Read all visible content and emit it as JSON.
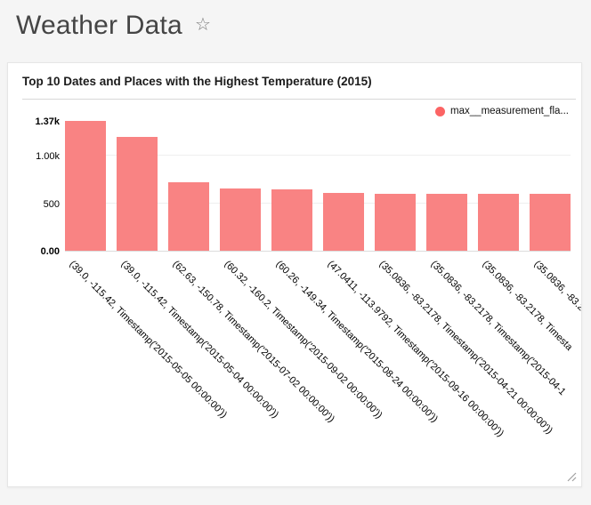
{
  "page": {
    "title": "Weather Data",
    "background": "#f5f5f5"
  },
  "card": {
    "title": "Top 10 Dates and Places with the Highest Temperature (2015)",
    "legend": {
      "label": "max__measurement_fla...",
      "color": "#fc6464"
    }
  },
  "chart_data": {
    "type": "bar",
    "title": "Top 10 Dates and Places with the Highest Temperature (2015)",
    "categories": [
      "(39.0, -115.42, Timestamp('2015-05-05 00:00:00'))",
      "(39.0, -115.42, Timestamp('2015-05-04 00:00:00'))",
      "(62.63, -150.78, Timestamp('2015-07-02 00:00:00'))",
      "(60.32, -160.2, Timestamp('2015-09-02 00:00:00'))",
      "(60.26, -149.34, Timestamp('2015-08-24 00:00:00'))",
      "(47.0411, -113.9792, Timestamp('2015-09-16 00:00:00'))",
      "(35.0836, -83.2178, Timestamp('2015-04-21 00:00:00'))",
      "(35.0836, -83.2178, Timestamp('2015-04-1",
      "(35.0836, -83.2178, Timesta",
      "(35.0836, -83.2"
    ],
    "series": [
      {
        "name": "max__measurement_fla...",
        "values": [
          1370,
          1200,
          720,
          655,
          645,
          608,
          605,
          603,
          602,
          600
        ]
      }
    ],
    "ylim": [
      0,
      1370
    ],
    "yticks": [
      {
        "label": "1.37k",
        "value": 1370,
        "bold": true
      },
      {
        "label": "1.00k",
        "value": 1000,
        "bold": false
      },
      {
        "label": "500",
        "value": 500,
        "bold": false
      },
      {
        "label": "0.00",
        "value": 0,
        "bold": true
      }
    ],
    "bar_color": "#f98383",
    "legend_position": "top-right",
    "grid": false,
    "x_label_rotation": 45
  }
}
